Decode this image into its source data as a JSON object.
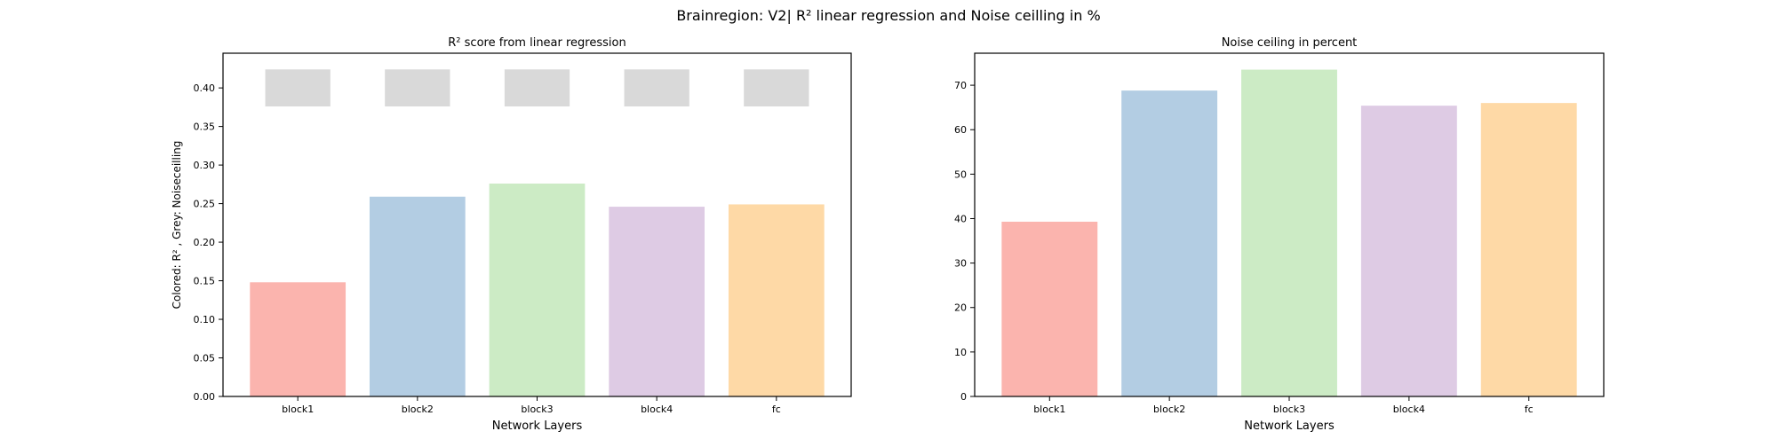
{
  "figure": {
    "suptitle": "Brainregion: V2| R² linear regression and Noise ceilling in %"
  },
  "chart_data": [
    {
      "type": "bar",
      "title": "R² score from linear regression",
      "xlabel": "Network Layers",
      "ylabel": "Colored: R² , Grey: Noiseceilling",
      "categories": [
        "block1",
        "block2",
        "block3",
        "block4",
        "fc"
      ],
      "series": [
        {
          "values": [
            0.148,
            0.259,
            0.276,
            0.246,
            0.249
          ],
          "colors": [
            "#fbb4ae",
            "#b3cde3",
            "#ccebc5",
            "#decbe4",
            "#fed9a6"
          ]
        }
      ],
      "noise_ceiling_markers": {
        "values": [
          0.4,
          0.4,
          0.4,
          0.4,
          0.4
        ],
        "half_height": 0.024,
        "color": "#d9d9d9"
      },
      "ylim": [
        0,
        0.445
      ],
      "yticks": [
        "0.00",
        "0.05",
        "0.10",
        "0.15",
        "0.20",
        "0.25",
        "0.30",
        "0.35",
        "0.40"
      ],
      "grid": false
    },
    {
      "type": "bar",
      "title": "Noise ceiling in percent",
      "xlabel": "Network Layers",
      "ylabel": "",
      "categories": [
        "block1",
        "block2",
        "block3",
        "block4",
        "fc"
      ],
      "series": [
        {
          "values": [
            39.3,
            68.8,
            73.5,
            65.4,
            66.0
          ],
          "colors": [
            "#fbb4ae",
            "#b3cde3",
            "#ccebc5",
            "#decbe4",
            "#fed9a6"
          ]
        }
      ],
      "ylim": [
        0,
        77.2
      ],
      "yticks": [
        "0",
        "10",
        "20",
        "30",
        "40",
        "50",
        "60",
        "70"
      ],
      "grid": false
    }
  ]
}
